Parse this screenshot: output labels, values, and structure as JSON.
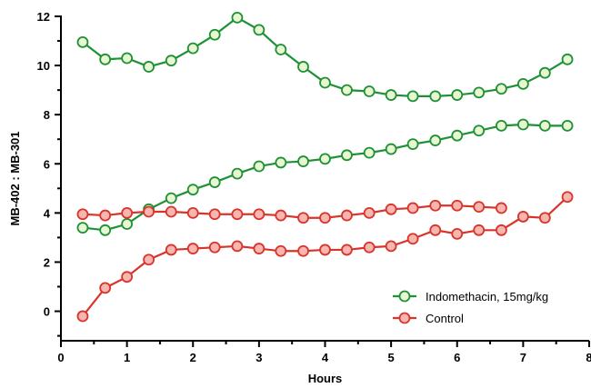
{
  "chart_data": {
    "type": "line",
    "xlabel": "Hours",
    "ylabel": "MB-402 : MB-301",
    "xlim": [
      0,
      8
    ],
    "ylim": [
      -1.2,
      12
    ],
    "xticks": [
      0,
      1,
      2,
      3,
      4,
      5,
      6,
      7,
      8
    ],
    "yticks": [
      0,
      2,
      4,
      6,
      8,
      10,
      12
    ],
    "grid": false,
    "legend_position": "bottom-right",
    "series": [
      {
        "name": "Indomethacin, 15mg/kg",
        "color": "#1e9135",
        "fill": "#e9f6d2",
        "x": [
          0.33,
          0.67,
          1.0,
          1.33,
          1.67,
          2.0,
          2.33,
          2.67,
          3.0,
          3.33,
          3.67,
          4.0,
          4.33,
          4.67,
          5.0,
          5.33,
          5.67,
          6.0,
          6.33,
          6.67,
          7.0,
          7.33,
          7.67
        ],
        "y": [
          10.95,
          10.25,
          10.3,
          9.95,
          10.2,
          10.7,
          11.25,
          11.95,
          11.45,
          10.65,
          9.95,
          9.3,
          9.0,
          8.95,
          8.8,
          8.75,
          8.75,
          8.8,
          8.9,
          9.05,
          9.25,
          9.7,
          10.25
        ]
      },
      {
        "name": "Indomethacin, 15mg/kg",
        "color": "#1e9135",
        "fill": "#e9f6d2",
        "x": [
          0.33,
          0.67,
          1.0,
          1.33,
          1.67,
          2.0,
          2.33,
          2.67,
          3.0,
          3.33,
          3.67,
          4.0,
          4.33,
          4.67,
          5.0,
          5.33,
          5.67,
          6.0,
          6.33,
          6.67,
          7.0,
          7.33,
          7.67
        ],
        "y": [
          3.4,
          3.3,
          3.55,
          4.15,
          4.6,
          4.95,
          5.25,
          5.6,
          5.9,
          6.05,
          6.1,
          6.2,
          6.35,
          6.45,
          6.6,
          6.8,
          6.95,
          7.15,
          7.35,
          7.55,
          7.6,
          7.55,
          7.55
        ]
      },
      {
        "name": "Control",
        "color": "#d9342b",
        "fill": "#f7b6b0",
        "x": [
          0.33,
          0.67,
          1.0,
          1.33,
          1.67,
          2.0,
          2.33,
          2.67,
          3.0,
          3.33,
          3.67,
          4.0,
          4.33,
          4.67,
          5.0,
          5.33,
          5.67,
          6.0,
          6.33,
          6.67
        ],
        "y": [
          3.95,
          3.9,
          4.0,
          4.05,
          4.05,
          4.0,
          3.95,
          3.95,
          3.95,
          3.9,
          3.8,
          3.8,
          3.9,
          4.0,
          4.15,
          4.2,
          4.3,
          4.3,
          4.25,
          4.2
        ]
      },
      {
        "name": "Control",
        "color": "#d9342b",
        "fill": "#f7b6b0",
        "x": [
          0.33,
          0.67,
          1.0,
          1.33,
          1.67,
          2.0,
          2.33,
          2.67,
          3.0,
          3.33,
          3.67,
          4.0,
          4.33,
          4.67,
          5.0,
          5.33,
          5.67,
          6.0,
          6.33,
          6.67,
          7.0,
          7.33,
          7.67
        ],
        "y": [
          -0.2,
          0.95,
          1.4,
          2.1,
          2.5,
          2.55,
          2.6,
          2.65,
          2.55,
          2.45,
          2.45,
          2.5,
          2.5,
          2.6,
          2.65,
          2.95,
          3.3,
          3.15,
          3.3,
          3.3,
          3.85,
          3.8,
          4.65
        ]
      }
    ],
    "legend": [
      {
        "label": "Indomethacin, 15mg/kg",
        "color": "#1e9135",
        "fill": "#e9f6d2"
      },
      {
        "label": "Control",
        "color": "#d9342b",
        "fill": "#f7b6b0"
      }
    ]
  }
}
